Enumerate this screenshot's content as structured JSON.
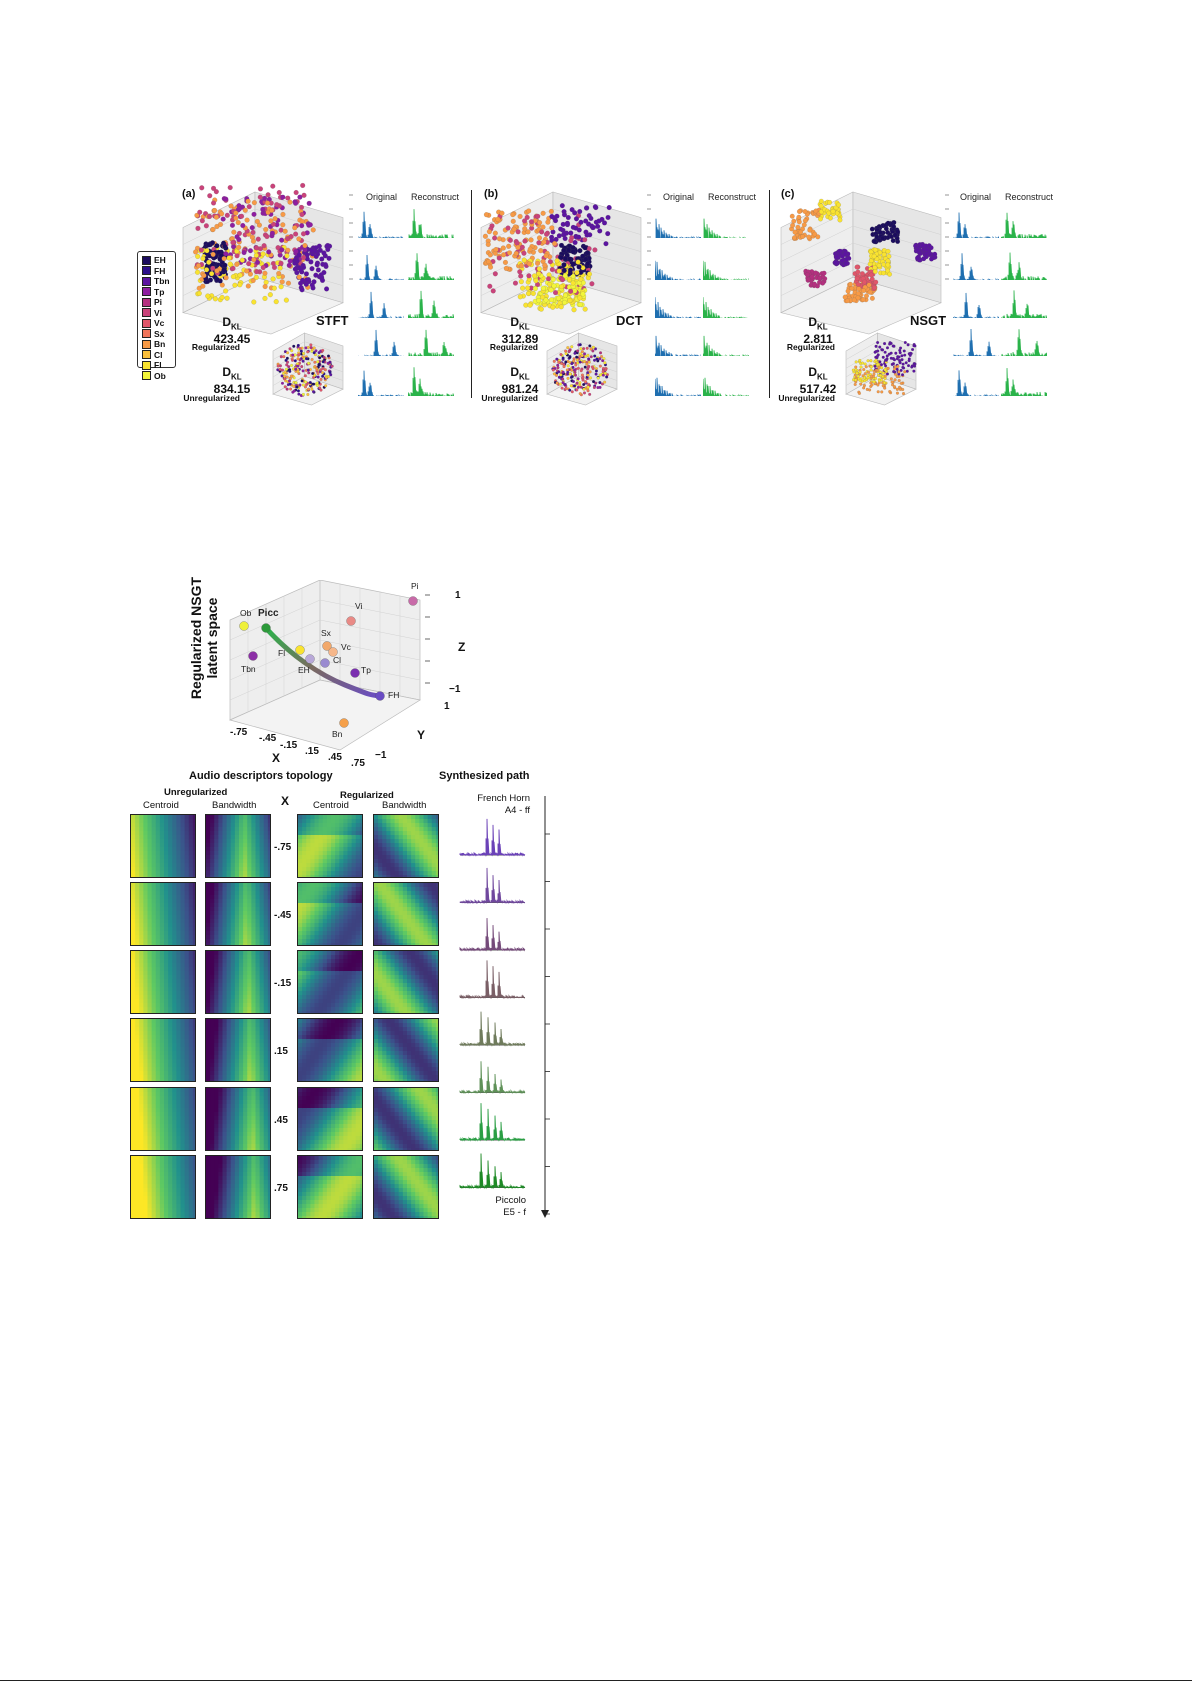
{
  "figure1": {
    "panels": [
      {
        "letter": "(a)",
        "transform": "STFT",
        "kl_reg": "423.45",
        "kl_unreg": "834.15"
      },
      {
        "letter": "(b)",
        "transform": "DCT",
        "kl_reg": "312.89",
        "kl_unreg": "981.24"
      },
      {
        "letter": "(c)",
        "transform": "NSGT",
        "kl_reg": "2.811",
        "kl_unreg": "517.42"
      }
    ],
    "kl_symbol": "D",
    "kl_subscript": "KL",
    "regularized_label": "Regularized",
    "unregularized_label": "Unregularized",
    "original_label": "Original",
    "reconstruct_label": "Reconstruct",
    "legend": [
      {
        "label": "EH",
        "color": "#1b0c5e"
      },
      {
        "label": "FH",
        "color": "#2c0f8a"
      },
      {
        "label": "Tbn",
        "color": "#5b14a0"
      },
      {
        "label": "Tp",
        "color": "#8e1ea0"
      },
      {
        "label": "Pi",
        "color": "#b4307f"
      },
      {
        "label": "Vi",
        "color": "#c9437a"
      },
      {
        "label": "Vc",
        "color": "#e0566a"
      },
      {
        "label": "Sx",
        "color": "#f0745a"
      },
      {
        "label": "Bn",
        "color": "#f79a46"
      },
      {
        "label": "Cl",
        "color": "#fbbf3a"
      },
      {
        "label": "Fl",
        "color": "#f9e330"
      },
      {
        "label": "Ob",
        "color": "#f2f53b"
      }
    ],
    "colors": {
      "original": "#1f6fb0",
      "reconstruct": "#2ab34a"
    }
  },
  "figure2": {
    "latent_title_1": "Regularized NSGT",
    "latent_title_2": "latent space",
    "axis_x": "X",
    "axis_y": "Y",
    "axis_z": "Z",
    "x_ticks": [
      "-.75",
      "-.45",
      "-.15",
      ".15",
      ".45",
      ".75"
    ],
    "y_ticks": [
      "1",
      "-1"
    ],
    "z_ticks": [
      "1",
      "-1"
    ],
    "points": [
      {
        "label": "Ob",
        "color": "#eef03a"
      },
      {
        "label": "Picc",
        "color": "#2c9a3a"
      },
      {
        "label": "Fl",
        "color": "#f9e330"
      },
      {
        "label": "Vi",
        "color": "#e98a86"
      },
      {
        "label": "Pi",
        "color": "#c86aa8"
      },
      {
        "label": "Sx",
        "color": "#f2a86a"
      },
      {
        "label": "Vc",
        "color": "#f6b78a"
      },
      {
        "label": "Tbn",
        "color": "#8c2fa6"
      },
      {
        "label": "EH",
        "color": "#b8a8d8"
      },
      {
        "label": "Cl",
        "color": "#9a8bd0"
      },
      {
        "label": "Tp",
        "color": "#7b2fb0"
      },
      {
        "label": "FH",
        "color": "#6a4cc4"
      },
      {
        "label": "Bn",
        "color": "#f5a04a"
      }
    ],
    "topology_title": "Audio descriptors topology",
    "unregularized": "Unregularized",
    "regularized": "Regularized",
    "centroid": "Centroid",
    "bandwidth": "Bandwidth",
    "x_label": "X",
    "x_rows": [
      "-.75",
      "-.45",
      "-.15",
      ".15",
      ".45",
      ".75"
    ],
    "synth_title": "Synthesized path",
    "synth_start_1": "French Horn",
    "synth_start_2": "A4 - ff",
    "synth_end_1": "Piccolo",
    "synth_end_2": "E5 - f",
    "synth_colors": [
      "#6b42b8",
      "#70489e",
      "#754a7a",
      "#7a5f66",
      "#6f7b5c",
      "#5f9158",
      "#2a9e44",
      "#1e8a26"
    ]
  }
}
